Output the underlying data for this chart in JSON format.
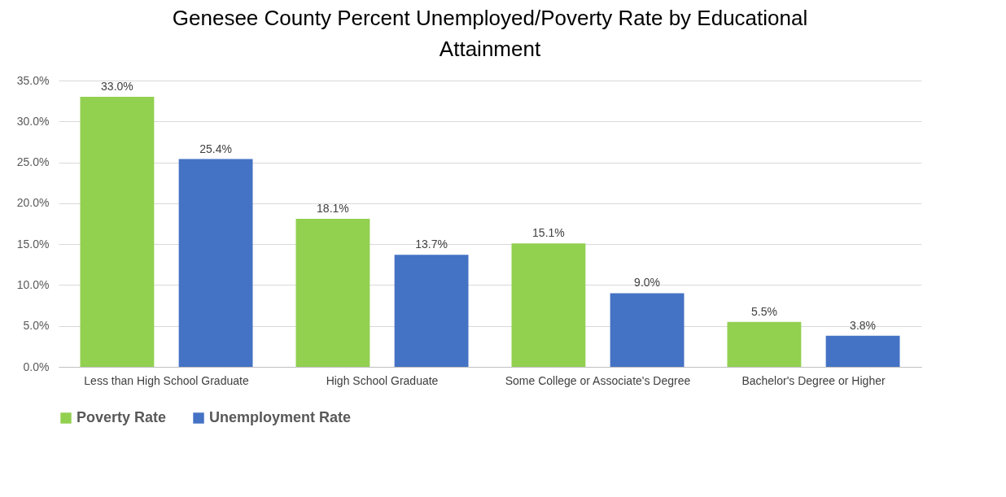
{
  "chart_data": {
    "type": "bar",
    "title": "Genesee County Percent Unemployed/Poverty Rate by Educational Attainment",
    "categories": [
      "Less than High School Graduate",
      "High School Graduate",
      "Some College or Associate's Degree",
      "Bachelor's Degree or Higher"
    ],
    "series": [
      {
        "name": "Poverty Rate",
        "color": "#92d050",
        "values": [
          33.0,
          18.1,
          15.1,
          5.5
        ],
        "value_labels": [
          "33.0%",
          "18.1%",
          "15.1%",
          "5.5%"
        ]
      },
      {
        "name": "Unemployment Rate",
        "color": "#4472c4",
        "values": [
          25.4,
          13.7,
          9.0,
          3.8
        ],
        "value_labels": [
          "25.4%",
          "13.7%",
          "9.0%",
          "3.8%"
        ]
      }
    ],
    "ylim": [
      0,
      35
    ],
    "yticks": [
      {
        "value": 0,
        "label": "0.0%"
      },
      {
        "value": 5,
        "label": "5.0%"
      },
      {
        "value": 10,
        "label": "10.0%"
      },
      {
        "value": 15,
        "label": "15.0%"
      },
      {
        "value": 20,
        "label": "20.0%"
      },
      {
        "value": 25,
        "label": "25.0%"
      },
      {
        "value": 30,
        "label": "30.0%"
      },
      {
        "value": 35,
        "label": "35.0%"
      }
    ],
    "grid": "y",
    "legend": "bottom"
  }
}
